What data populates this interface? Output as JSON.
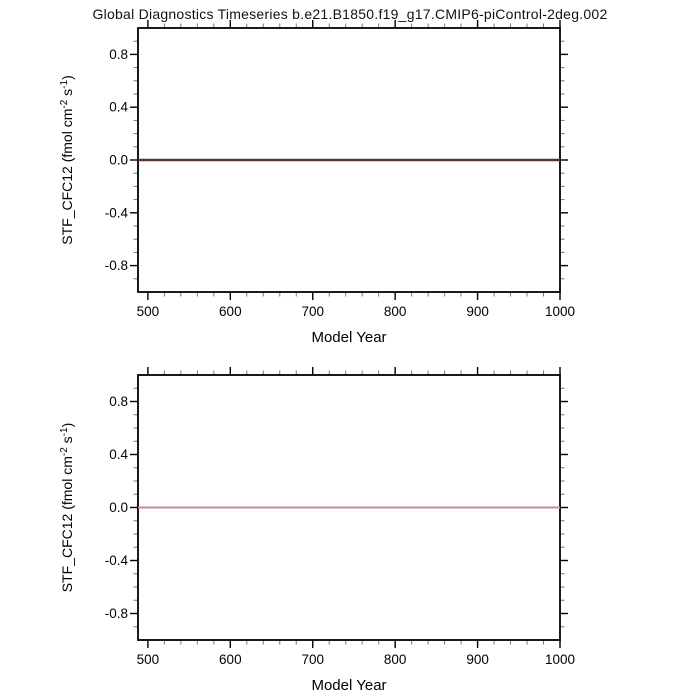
{
  "title": "Global Diagnostics Timeseries b.e21.B1850.f19_g17.CMIP6-piControl-2deg.002",
  "colors": {
    "background": "#ffffff",
    "axis_frame": "#000000",
    "major_tick": "#000000",
    "minor_tick": "#777777",
    "text": "#111111",
    "top_plot_line": "#5f3232",
    "bottom_plot_line": "#c88c91"
  },
  "chart_data": [
    {
      "type": "line",
      "plot_position": "top",
      "title": "",
      "xlabel": "Model Year",
      "ylabel": "STF_CFC12 (fmol cm-2 s-1)",
      "ylabel_segments": [
        {
          "text": "STF_CFC12 (fmol cm"
        },
        {
          "text": "-2",
          "sup": true
        },
        {
          "text": " s"
        },
        {
          "text": "-1",
          "sup": true
        },
        {
          "text": ")"
        }
      ],
      "xlim": [
        488,
        1000
      ],
      "ylim": [
        -1.0,
        1.0
      ],
      "x_major_ticks": [
        500,
        600,
        700,
        800,
        900,
        1000
      ],
      "x_tick_labels": [
        "500",
        "600",
        "700",
        "800",
        "900",
        "1000"
      ],
      "x_minor_step": 20,
      "y_major_ticks": [
        0.8,
        0.4,
        0.0,
        -0.4,
        -0.8
      ],
      "y_tick_labels": [
        "0.8",
        "0.4",
        "0.0",
        "-0.4",
        "-0.8"
      ],
      "y_minor_step": 0.1,
      "grid": false,
      "legend": "none",
      "series": [
        {
          "name": "STF_CFC12",
          "x": [
            488,
            1000
          ],
          "y": [
            0.0,
            0.0
          ],
          "color": "#5f3232",
          "width": 2.5
        }
      ]
    },
    {
      "type": "line",
      "plot_position": "bottom",
      "title": "",
      "xlabel": "Model Year",
      "ylabel": "STF_CFC12 (fmol cm-2 s-1)",
      "ylabel_segments": [
        {
          "text": "STF_CFC12 (fmol cm"
        },
        {
          "text": "-2",
          "sup": true
        },
        {
          "text": " s"
        },
        {
          "text": "-1",
          "sup": true
        },
        {
          "text": ")"
        }
      ],
      "xlim": [
        488,
        1000
      ],
      "ylim": [
        -1.0,
        1.0
      ],
      "x_major_ticks": [
        500,
        600,
        700,
        800,
        900,
        1000
      ],
      "x_tick_labels": [
        "500",
        "600",
        "700",
        "800",
        "900",
        "1000"
      ],
      "x_minor_step": 20,
      "y_major_ticks": [
        0.8,
        0.4,
        0.0,
        -0.4,
        -0.8
      ],
      "y_tick_labels": [
        "0.8",
        "0.4",
        "0.0",
        "-0.4",
        "-0.8"
      ],
      "y_minor_step": 0.1,
      "grid": false,
      "legend": "none",
      "series": [
        {
          "name": "STF_CFC12",
          "x": [
            488,
            1000
          ],
          "y": [
            0.0,
            0.0
          ],
          "color": "#c88c91",
          "width": 2
        }
      ]
    }
  ]
}
